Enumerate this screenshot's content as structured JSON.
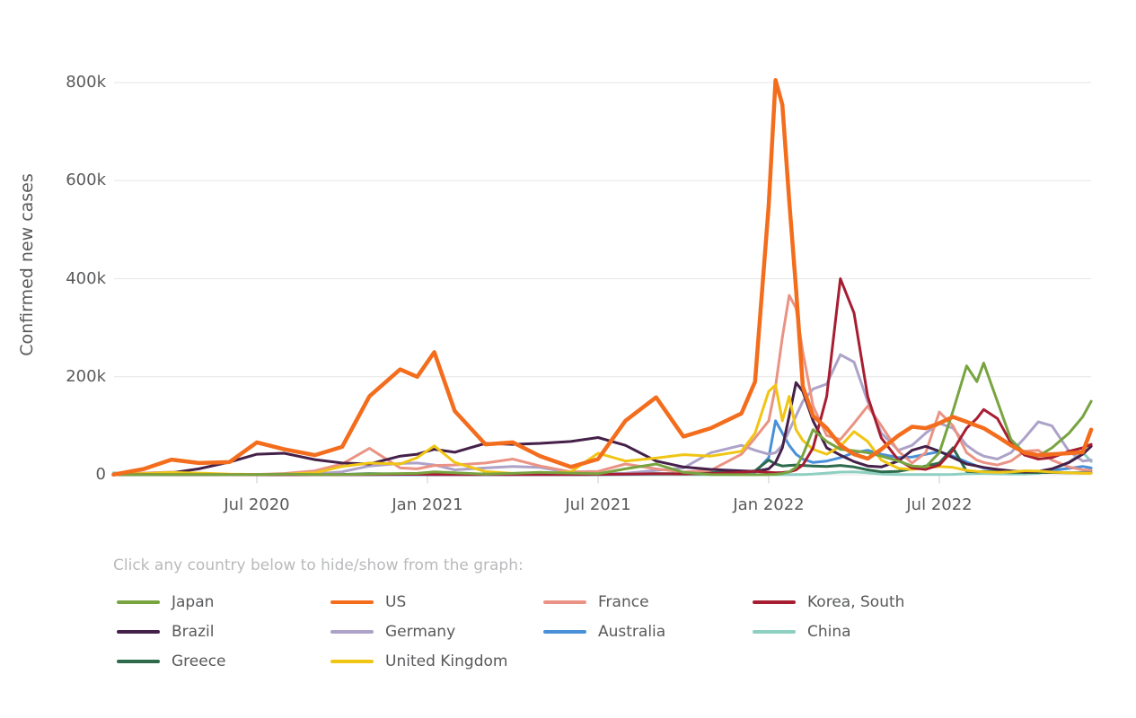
{
  "legend": {
    "hint": "Click any country below to hide/show from the graph:",
    "items": [
      "Japan",
      "US",
      "France",
      "Korea, South",
      "Brazil",
      "Germany",
      "Australia",
      "China",
      "Greece",
      "United Kingdom"
    ]
  },
  "chart_data": {
    "type": "line",
    "title": "",
    "xlabel": "",
    "ylabel": "Confirmed new cases",
    "y_unit": "thousands (k) of confirmed new cases per day",
    "x_unit": "decimal year",
    "xlim": [
      2020.08,
      2022.945
    ],
    "ylim": [
      0,
      830
    ],
    "grid": "horizontal",
    "legend_position": "below",
    "x_ticks": [
      {
        "value": 2020.5,
        "label": "Jul 2020"
      },
      {
        "value": 2021.0,
        "label": "Jan 2021"
      },
      {
        "value": 2021.5,
        "label": "Jul 2021"
      },
      {
        "value": 2022.0,
        "label": "Jan 2022"
      },
      {
        "value": 2022.5,
        "label": "Jul 2022"
      }
    ],
    "y_ticks": [
      {
        "value": 0,
        "label": "0"
      },
      {
        "value": 200,
        "label": "200k"
      },
      {
        "value": 400,
        "label": "400k"
      },
      {
        "value": 600,
        "label": "600k"
      },
      {
        "value": 800,
        "label": "800k"
      }
    ],
    "x": [
      2020.08,
      2020.17,
      2020.25,
      2020.33,
      2020.42,
      2020.5,
      2020.58,
      2020.67,
      2020.75,
      2020.83,
      2020.92,
      2020.97,
      2021.02,
      2021.08,
      2021.17,
      2021.25,
      2021.33,
      2021.42,
      2021.5,
      2021.58,
      2021.67,
      2021.75,
      2021.83,
      2021.92,
      2021.96,
      2022.0,
      2022.02,
      2022.04,
      2022.06,
      2022.08,
      2022.1,
      2022.13,
      2022.17,
      2022.21,
      2022.25,
      2022.29,
      2022.33,
      2022.38,
      2022.42,
      2022.46,
      2022.5,
      2022.54,
      2022.58,
      2022.61,
      2022.63,
      2022.67,
      2022.71,
      2022.75,
      2022.79,
      2022.83,
      2022.88,
      2022.92,
      2022.945
    ],
    "series": [
      {
        "name": "Japan",
        "color": "#78A440",
        "values": [
          0.1,
          0.1,
          0.4,
          0.3,
          0.1,
          0.6,
          1.3,
          0.5,
          0.5,
          1.5,
          2.5,
          3,
          5.8,
          4,
          1.2,
          3,
          5,
          3.5,
          2,
          12,
          22,
          5,
          0.3,
          0.2,
          0.2,
          0.4,
          1,
          2.5,
          6,
          15,
          40,
          92,
          68,
          52,
          49,
          45,
          38,
          28,
          18,
          16,
          45,
          130,
          222,
          190,
          228,
          150,
          72,
          44,
          38,
          55,
          85,
          118,
          150
        ]
      },
      {
        "name": "US",
        "color": "#F36D1D",
        "values": [
          0.3,
          12,
          31,
          24,
          26,
          66,
          52,
          40,
          57,
          160,
          215,
          200,
          250,
          130,
          62,
          66,
          38,
          16,
          32,
          110,
          158,
          78,
          95,
          125,
          190,
          550,
          805,
          755,
          560,
          380,
          180,
          120,
          95,
          60,
          42,
          33,
          52,
          80,
          98,
          95,
          105,
          118,
          108,
          100,
          95,
          78,
          60,
          45,
          40,
          42,
          44,
          46,
          92
        ]
      },
      {
        "name": "France",
        "color": "#EA9384",
        "values": [
          0.4,
          3.5,
          5,
          1.5,
          0.6,
          0.8,
          2.5,
          8,
          22,
          54,
          14,
          12,
          19,
          20,
          24,
          32,
          18,
          6,
          7,
          22,
          12,
          5.5,
          9,
          42,
          75,
          110,
          180,
          280,
          366,
          340,
          250,
          140,
          80,
          72,
          105,
          140,
          100,
          48,
          24,
          45,
          128,
          100,
          45,
          30,
          25,
          20,
          28,
          48,
          50,
          30,
          16,
          10,
          9
        ]
      },
      {
        "name": "Korea, South",
        "color": "#A71D31",
        "values": [
          0.1,
          0.3,
          0.1,
          0.1,
          0.1,
          0.1,
          0.2,
          0.1,
          0.1,
          0.3,
          1,
          1,
          0.8,
          0.4,
          0.4,
          0.6,
          0.6,
          0.5,
          0.7,
          1.5,
          2,
          1.7,
          2.5,
          5,
          7,
          5,
          4,
          4.5,
          6,
          10,
          20,
          55,
          160,
          400,
          330,
          160,
          75,
          30,
          14,
          11,
          20,
          50,
          95,
          115,
          133,
          115,
          65,
          40,
          32,
          35,
          48,
          55,
          62
        ]
      },
      {
        "name": "Brazil",
        "color": "#452049",
        "values": [
          0,
          0.5,
          4,
          12,
          26,
          42,
          44,
          31,
          24,
          22,
          38,
          42,
          52,
          46,
          64,
          62,
          64,
          68,
          76,
          60,
          28,
          16,
          11,
          8,
          7,
          12,
          25,
          55,
          120,
          188,
          170,
          110,
          55,
          40,
          27,
          18,
          16,
          28,
          50,
          58,
          48,
          35,
          22,
          18,
          15,
          11,
          8,
          6,
          7,
          12,
          25,
          42,
          58
        ]
      },
      {
        "name": "Germany",
        "color": "#ADA2C8",
        "values": [
          0.3,
          3.5,
          5.5,
          1.2,
          0.5,
          0.4,
          1.2,
          1.8,
          6,
          18,
          23,
          24,
          20,
          10,
          14,
          17,
          15,
          4,
          1.2,
          3,
          9,
          14,
          45,
          60,
          50,
          42,
          45,
          60,
          90,
          120,
          150,
          175,
          185,
          245,
          230,
          150,
          85,
          50,
          60,
          85,
          105,
          95,
          60,
          45,
          38,
          32,
          45,
          75,
          108,
          100,
          48,
          28,
          30
        ]
      },
      {
        "name": "Australia",
        "color": "#4A90D8",
        "values": [
          0,
          0.3,
          0.3,
          0,
          0,
          0.3,
          0.4,
          0.1,
          0,
          0,
          0,
          0,
          0,
          0,
          0,
          0,
          0,
          0,
          0.2,
          0.8,
          1.7,
          2.2,
          1.5,
          2,
          5,
          35,
          110,
          85,
          60,
          42,
          32,
          25,
          28,
          35,
          45,
          50,
          42,
          35,
          36,
          42,
          47,
          38,
          26,
          18,
          14,
          9,
          6.5,
          5.5,
          6,
          9,
          13,
          17,
          14
        ]
      },
      {
        "name": "China",
        "color": "#8DCFC0",
        "values": [
          4,
          1.2,
          0.1,
          0.05,
          0.05,
          0.1,
          0.1,
          0.05,
          0.05,
          0.05,
          0.1,
          0.1,
          0.1,
          0.1,
          0.1,
          0.05,
          0.05,
          0.05,
          0.1,
          0.15,
          0.1,
          0.1,
          0.1,
          0.1,
          0.15,
          0.2,
          0.2,
          0.2,
          0.2,
          0.3,
          0.5,
          1.5,
          3.5,
          5.5,
          6,
          4,
          1.5,
          0.4,
          0.3,
          0.3,
          0.4,
          0.7,
          2,
          2.5,
          2.8,
          1.8,
          1.2,
          1.5,
          3,
          9,
          26,
          46,
          27
        ]
      },
      {
        "name": "Greece",
        "color": "#2E6B4D",
        "values": [
          0,
          0.05,
          0.05,
          0.02,
          0.02,
          0.05,
          0.2,
          0.3,
          0.8,
          2.4,
          1.8,
          1.2,
          0.6,
          1,
          1.8,
          2.6,
          2.2,
          1,
          1.5,
          2.8,
          2.3,
          2.3,
          4.5,
          5.5,
          8,
          30,
          22,
          18,
          19,
          20,
          19,
          18,
          17,
          19,
          16,
          10,
          6,
          7,
          12,
          18,
          24,
          55,
          7,
          6,
          6.5,
          6,
          5,
          4.5,
          4.5,
          4.5,
          4,
          4,
          4
        ]
      },
      {
        "name": "United Kingdom",
        "color": "#F0C513",
        "values": [
          0.1,
          2.5,
          4.8,
          3.5,
          1.2,
          0.7,
          1.1,
          3.8,
          17,
          24,
          22,
          35,
          59,
          25,
          6.5,
          2.7,
          2.2,
          6,
          44,
          28,
          34,
          41,
          38,
          48,
          85,
          170,
          183,
          110,
          160,
          92,
          70,
          52,
          42,
          58,
          88,
          68,
          30,
          13,
          11,
          14,
          17,
          15,
          9,
          7,
          6,
          5,
          6,
          8,
          7.5,
          5.5,
          4,
          3,
          3
        ]
      }
    ]
  }
}
